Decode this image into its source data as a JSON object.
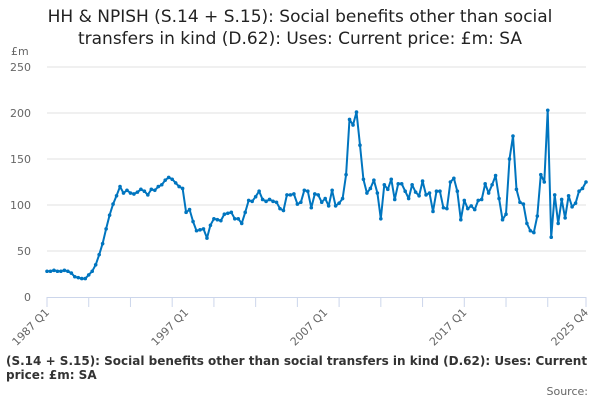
{
  "chart_data": {
    "type": "line",
    "title": "HH & NPISH (S.14 + S.15): Social benefits other than social transfers in kind (D.62): Uses: Current price: £m: SA",
    "title_lines": [
      "HH & NPISH (S.14 + S.15): Social benefits other than social",
      "transfers in kind (D.62): Uses: Current price: £m: SA"
    ],
    "ylabel": "£m",
    "xlabel": "",
    "ylim": [
      0,
      250
    ],
    "yticks": [
      0,
      50,
      100,
      150,
      200,
      250
    ],
    "xticks": [
      "1987 Q1",
      "1997 Q1",
      "2007 Q1",
      "2017 Q1",
      "2025 Q4"
    ],
    "start_period": "1987 Q1",
    "end_period": "2025 Q4",
    "grid": true,
    "color": "#0075bf",
    "series": [
      {
        "name": "HH & NPISH (S.14 + S.15): Social benefits other than social transfers in kind (D.62): Uses: Current price: £m: SA",
        "values": [
          28,
          28,
          29,
          28,
          28,
          29,
          28,
          26,
          22,
          21,
          20,
          20,
          24,
          28,
          35,
          46,
          58,
          74,
          89,
          101,
          110,
          120,
          113,
          116,
          113,
          112,
          114,
          117,
          115,
          111,
          117,
          116,
          120,
          122,
          127,
          130,
          128,
          124,
          120,
          118,
          92,
          95,
          82,
          72,
          73,
          74,
          64,
          78,
          85,
          84,
          83,
          90,
          91,
          92,
          85,
          85,
          80,
          92,
          105,
          104,
          109,
          115,
          106,
          104,
          106,
          104,
          103,
          96,
          94,
          111,
          111,
          112,
          101,
          103,
          116,
          115,
          97,
          112,
          111,
          103,
          107,
          99,
          116,
          99,
          102,
          107,
          133,
          193,
          187,
          201,
          165,
          128,
          113,
          118,
          127,
          113,
          85,
          122,
          117,
          128,
          106,
          123,
          123,
          115,
          107,
          122,
          114,
          110,
          126,
          111,
          113,
          93,
          115,
          115,
          97,
          96,
          125,
          129,
          115,
          84,
          105,
          96,
          99,
          95,
          105,
          106,
          123,
          113,
          122,
          132,
          107,
          84,
          90,
          150,
          175,
          117,
          103,
          101,
          80,
          72,
          70,
          88,
          133,
          125,
          203,
          65,
          111,
          80,
          106,
          86,
          110,
          98,
          102,
          115,
          118,
          125
        ]
      }
    ]
  },
  "footer": {
    "text": "(S.14 + S.15): Social benefits other than social transfers in kind (D.62): Uses: Current price: £m: SA",
    "source_label": "Source:"
  }
}
